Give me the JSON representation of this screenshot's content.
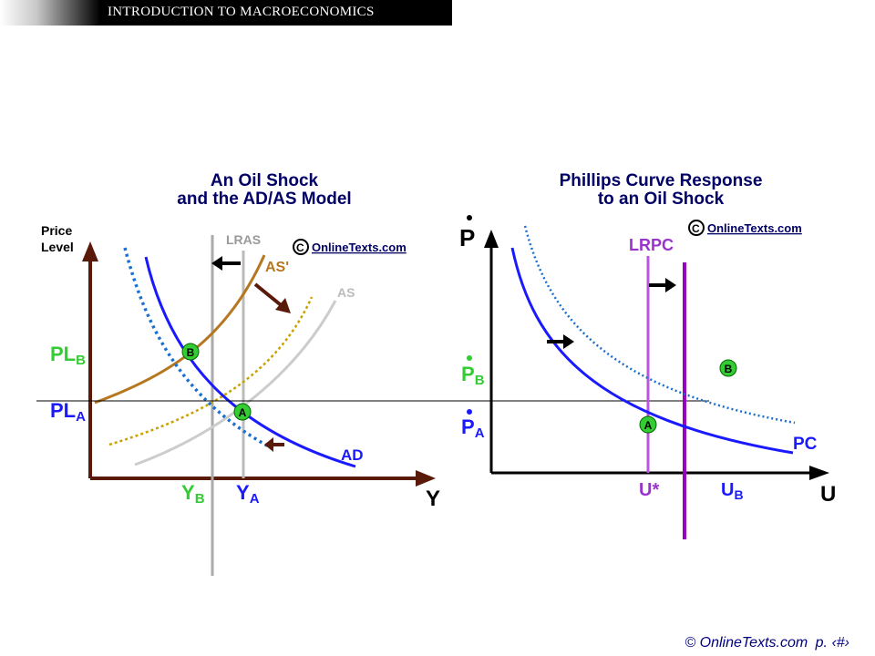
{
  "header": {
    "title": "INTRODUCTION TO MACROECONOMICS"
  },
  "left_graph": {
    "title_line1": "An Oil Shock",
    "title_line2": "and the AD/AS Model",
    "y_axis_line1": "Price",
    "y_axis_line2": "Level",
    "x_axis": "Y",
    "logo": "OnlineTexts.com",
    "labels": {
      "lras": "LRAS",
      "as_prime": "AS'",
      "as": "AS",
      "ad": "AD",
      "pl_b": "PL",
      "pl_b_sub": "B",
      "pl_a": "PL",
      "pl_a_sub": "A",
      "y_b": "Y",
      "y_b_sub": "B",
      "y_a": "Y",
      "y_a_sub": "A",
      "point_a": "A",
      "point_b": "B"
    }
  },
  "right_graph": {
    "title_line1": "Phillips Curve Response",
    "title_line2": "to an Oil Shock",
    "y_axis": "P",
    "x_axis": "U",
    "logo": "OnlineTexts.com",
    "labels": {
      "lrpc": "LRPC",
      "pc": "PC",
      "p_b": "P",
      "p_b_sub": "B",
      "p_a": "P",
      "p_a_sub": "A",
      "u_star": "U*",
      "u_b": "U",
      "u_b_sub": "B",
      "point_a": "A",
      "point_b": "B"
    }
  },
  "colors": {
    "blue": "#1a1aff",
    "green": "#33cc33",
    "brown": "#b5771f",
    "maroon": "#5a1a0a",
    "purple": "#9933cc",
    "lightgray": "#cccccc",
    "title_navy": "#000066"
  },
  "footer": {
    "copyright": "© OnlineTexts.com",
    "page": "p. ‹#›"
  }
}
